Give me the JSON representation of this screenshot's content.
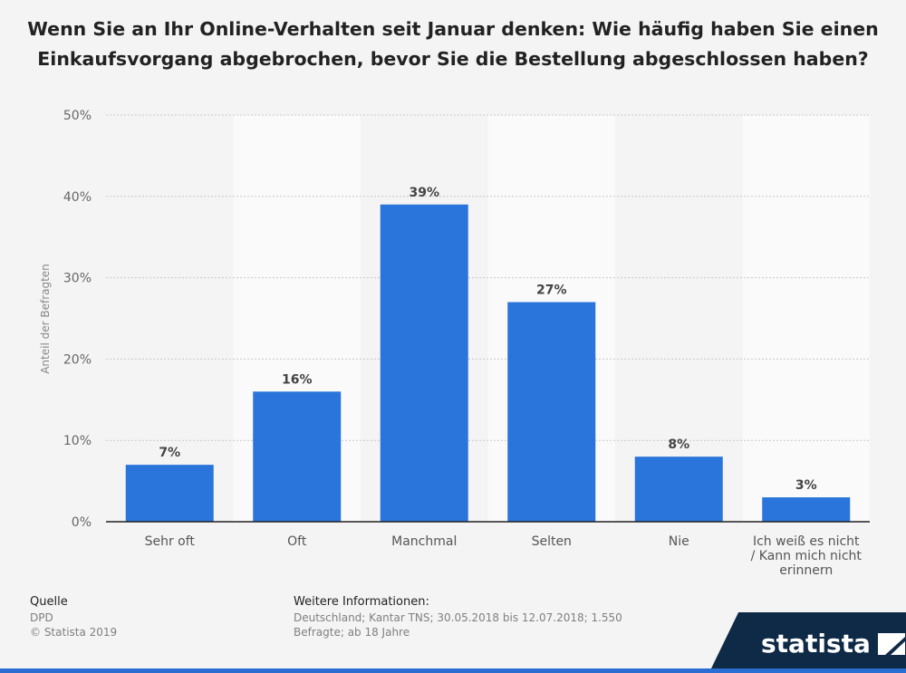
{
  "title": "Wenn Sie an Ihr Online-Verhalten seit Januar denken: Wie häufig haben Sie einen Einkaufsvorgang abgebrochen, bevor Sie die Bestellung abgeschlossen haben?",
  "chart_data": {
    "type": "bar",
    "categories": [
      "Sehr oft",
      "Oft",
      "Manchmal",
      "Selten",
      "Nie",
      "Ich weiß es nicht / Kann mich nicht erinnern"
    ],
    "category_lines": [
      [
        "Sehr oft"
      ],
      [
        "Oft"
      ],
      [
        "Manchmal"
      ],
      [
        "Selten"
      ],
      [
        "Nie"
      ],
      [
        "Ich weiß es nicht",
        "/ Kann mich nicht",
        "erinnern"
      ]
    ],
    "values": [
      7,
      16,
      39,
      27,
      8,
      3
    ],
    "data_labels": [
      "7%",
      "16%",
      "39%",
      "27%",
      "8%",
      "3%"
    ],
    "ylabel": "Anteil der Befragten",
    "ylim": [
      0,
      50
    ],
    "yticks": [
      "0%",
      "10%",
      "20%",
      "30%",
      "40%",
      "50%"
    ],
    "grid": true,
    "bar_color": "#2a75db"
  },
  "footer": {
    "source_label": "Quelle",
    "source_value": "DPD",
    "copyright": "© Statista 2019",
    "info_label": "Weitere Informationen:",
    "info_line1": "Deutschland; Kantar TNS; 30.05.2018 bis 12.07.2018; 1.550",
    "info_line2": "Befragte; ab 18 Jahre"
  },
  "logo": {
    "text": "statista",
    "icon": "statista-logo-icon"
  }
}
